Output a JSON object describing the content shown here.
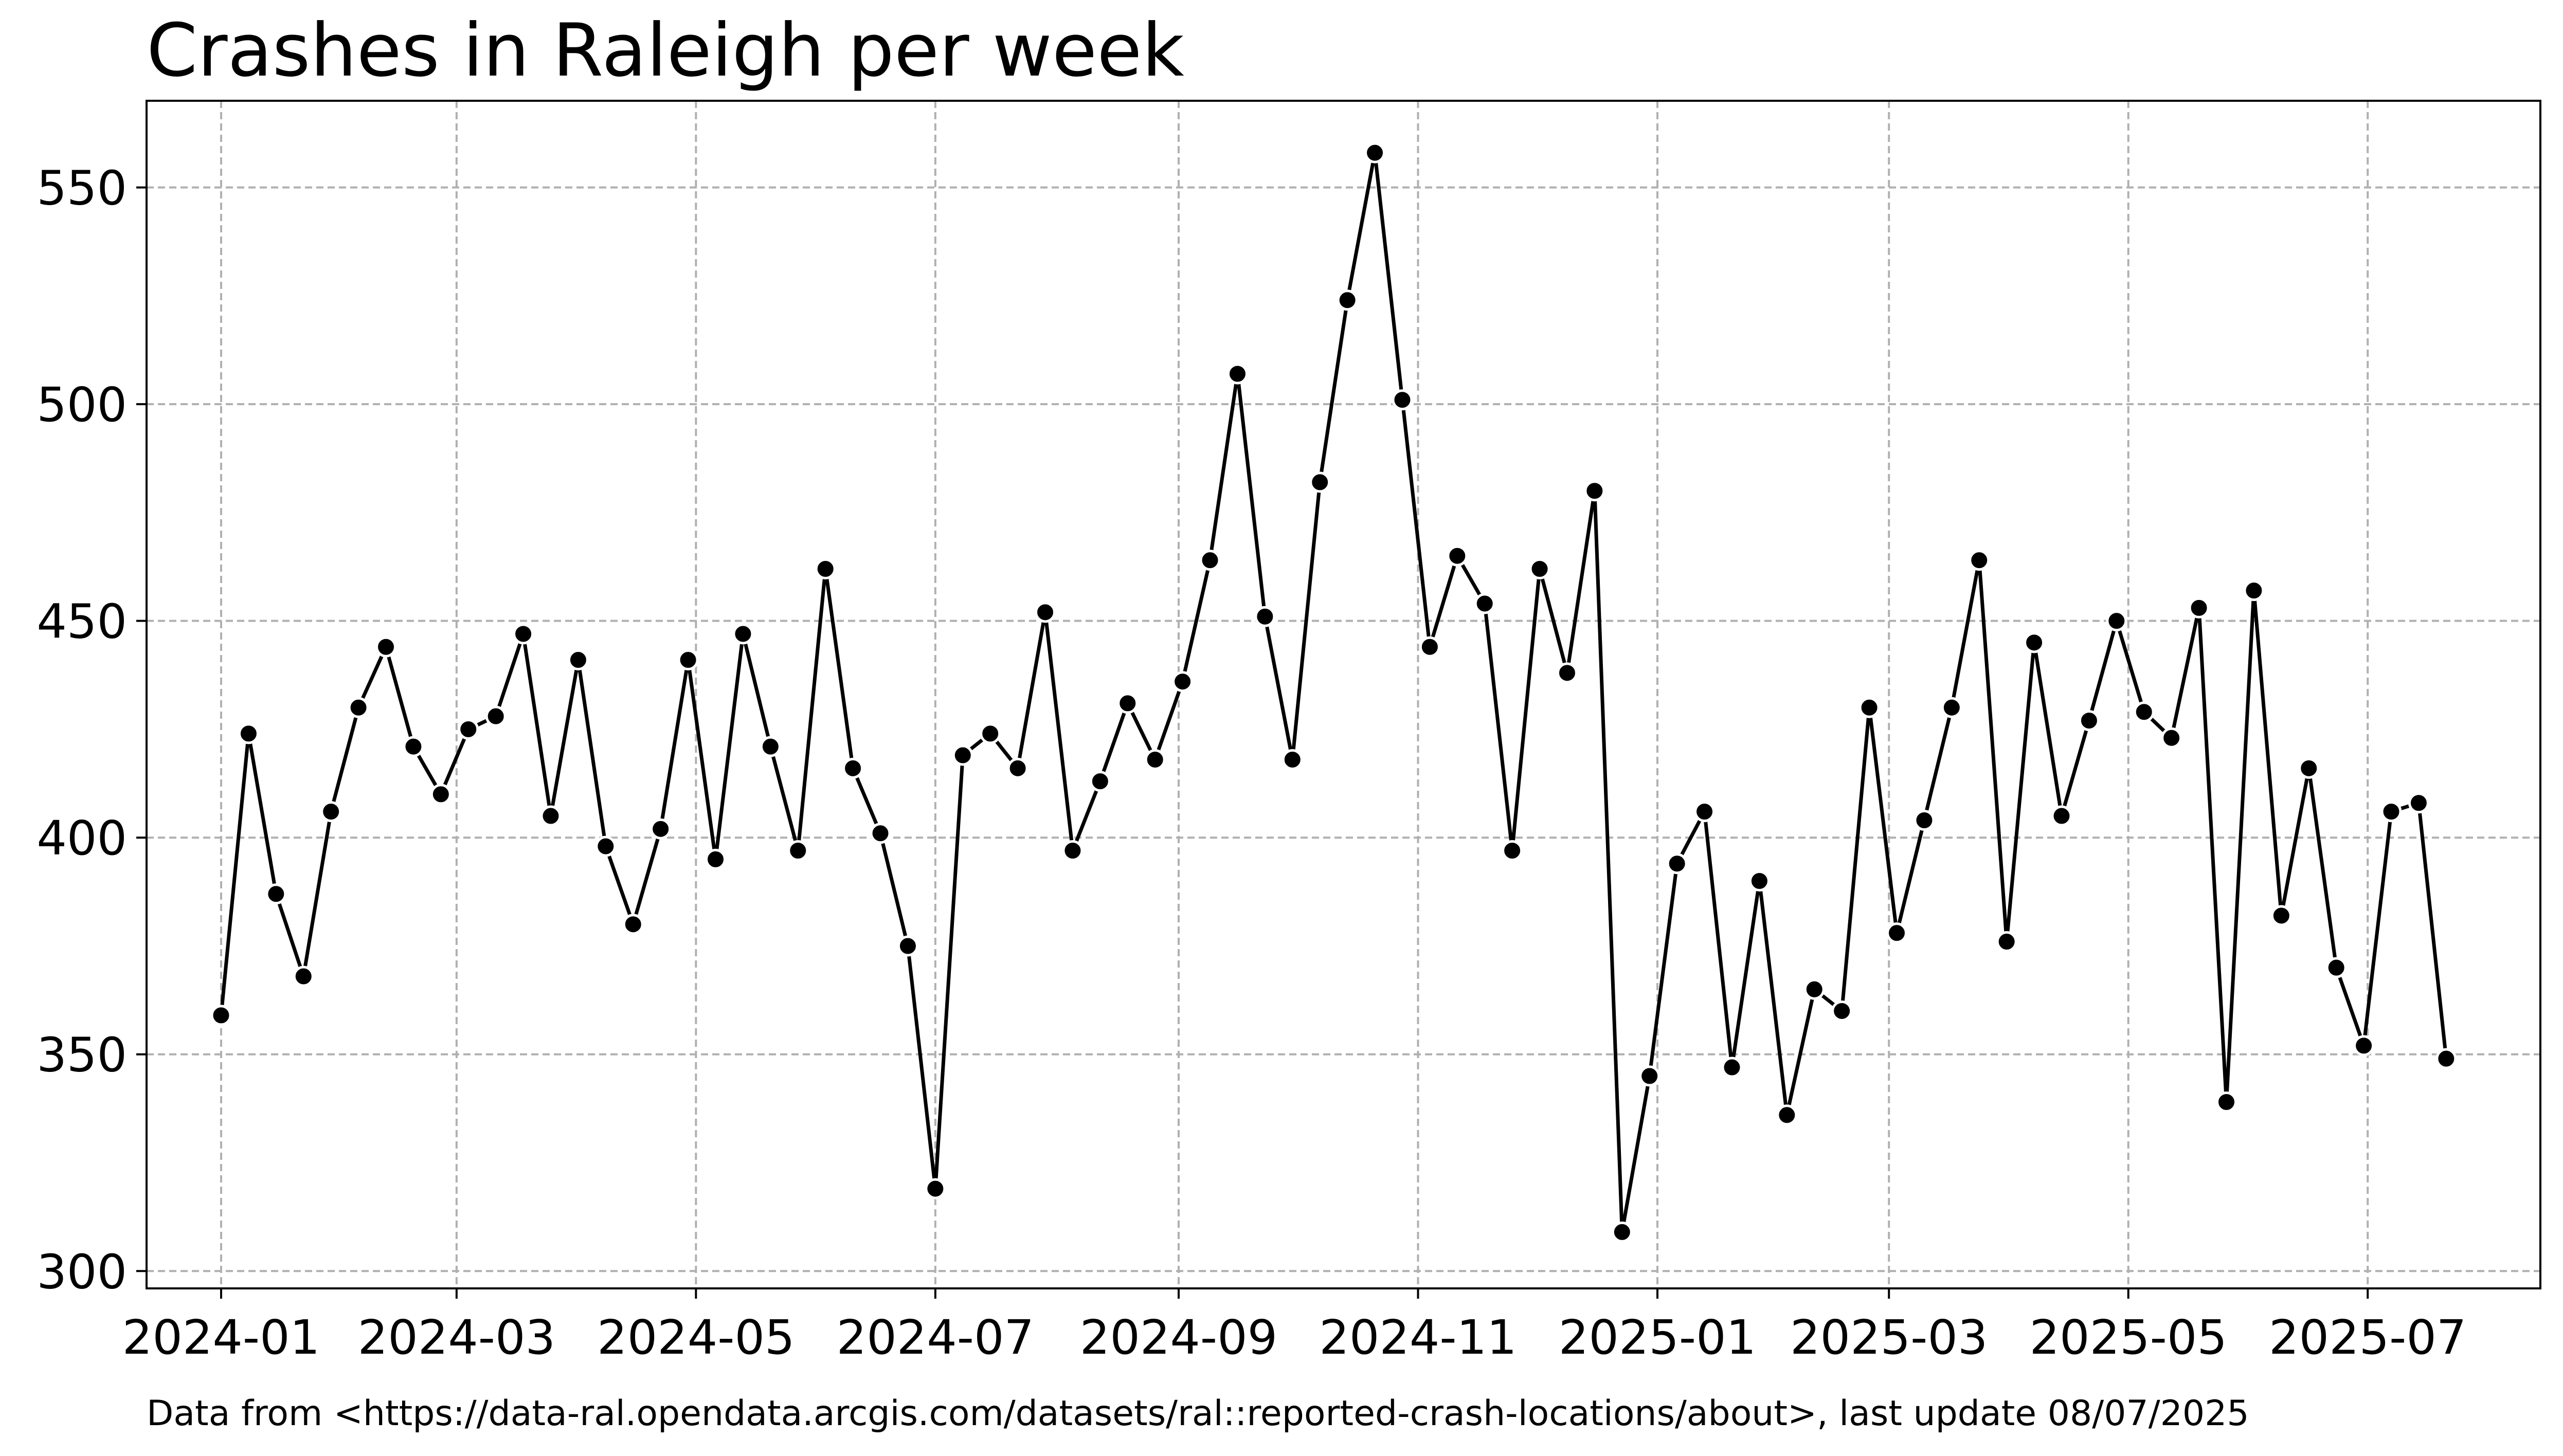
{
  "chart_data": {
    "type": "line",
    "title": "Crashes in Raleigh per week",
    "xlabel": "",
    "ylabel": "",
    "note": "Data from <https://data-ral.opendata.arcgis.com/datasets/ral::reported-crash-locations/about>, last update 08/07/2025",
    "x_ticks": [
      "2024-01",
      "2024-03",
      "2024-05",
      "2024-07",
      "2024-09",
      "2024-11",
      "2025-01",
      "2025-03",
      "2025-05",
      "2025-07"
    ],
    "y_ticks": [
      300,
      350,
      400,
      450,
      500,
      550
    ],
    "ylim": [
      296,
      570
    ],
    "xlim": [
      "2023-12-13",
      "2025-08-14"
    ],
    "grid": true,
    "legend": "none",
    "colors": {
      "line": "#000000",
      "marker": "#000000",
      "marker_edge": "#ffffff",
      "grid": "#b0b0b0",
      "axes": "#000000"
    },
    "series": [
      {
        "x": [
          "2024-01-01",
          "2024-01-08",
          "2024-01-15",
          "2024-01-22",
          "2024-01-29",
          "2024-02-05",
          "2024-02-12",
          "2024-02-19",
          "2024-02-26",
          "2024-03-04",
          "2024-03-11",
          "2024-03-18",
          "2024-03-25",
          "2024-04-01",
          "2024-04-08",
          "2024-04-15",
          "2024-04-22",
          "2024-04-29",
          "2024-05-06",
          "2024-05-13",
          "2024-05-20",
          "2024-05-27",
          "2024-06-03",
          "2024-06-10",
          "2024-06-17",
          "2024-06-24",
          "2024-07-01",
          "2024-07-08",
          "2024-07-15",
          "2024-07-22",
          "2024-07-29",
          "2024-08-05",
          "2024-08-12",
          "2024-08-19",
          "2024-08-26",
          "2024-09-02",
          "2024-09-09",
          "2024-09-16",
          "2024-09-23",
          "2024-09-30",
          "2024-10-07",
          "2024-10-14",
          "2024-10-21",
          "2024-10-28",
          "2024-11-04",
          "2024-11-11",
          "2024-11-18",
          "2024-11-25",
          "2024-12-02",
          "2024-12-09",
          "2024-12-16",
          "2024-12-23",
          "2024-12-30",
          "2025-01-06",
          "2025-01-13",
          "2025-01-20",
          "2025-01-27",
          "2025-02-03",
          "2025-02-10",
          "2025-02-17",
          "2025-02-24",
          "2025-03-03",
          "2025-03-10",
          "2025-03-17",
          "2025-03-24",
          "2025-03-31",
          "2025-04-07",
          "2025-04-14",
          "2025-04-21",
          "2025-04-28",
          "2025-05-05",
          "2025-05-12",
          "2025-05-19",
          "2025-05-26",
          "2025-06-02",
          "2025-06-09",
          "2025-06-16",
          "2025-06-23",
          "2025-06-30",
          "2025-07-07",
          "2025-07-14",
          "2025-07-21"
        ],
        "values": [
          359,
          424,
          387,
          368,
          406,
          430,
          444,
          421,
          410,
          425,
          428,
          447,
          405,
          441,
          398,
          380,
          402,
          441,
          395,
          447,
          421,
          397,
          462,
          416,
          401,
          375,
          319,
          419,
          424,
          416,
          452,
          397,
          413,
          431,
          418,
          436,
          464,
          507,
          451,
          418,
          482,
          524,
          558,
          501,
          444,
          465,
          454,
          397,
          462,
          438,
          480,
          309,
          345,
          394,
          406,
          347,
          390,
          336,
          365,
          360,
          430,
          378,
          404,
          430,
          464,
          376,
          445,
          405,
          427,
          450,
          429,
          423,
          453,
          339,
          457,
          382,
          416,
          370,
          352,
          406,
          408,
          349
        ]
      }
    ]
  }
}
